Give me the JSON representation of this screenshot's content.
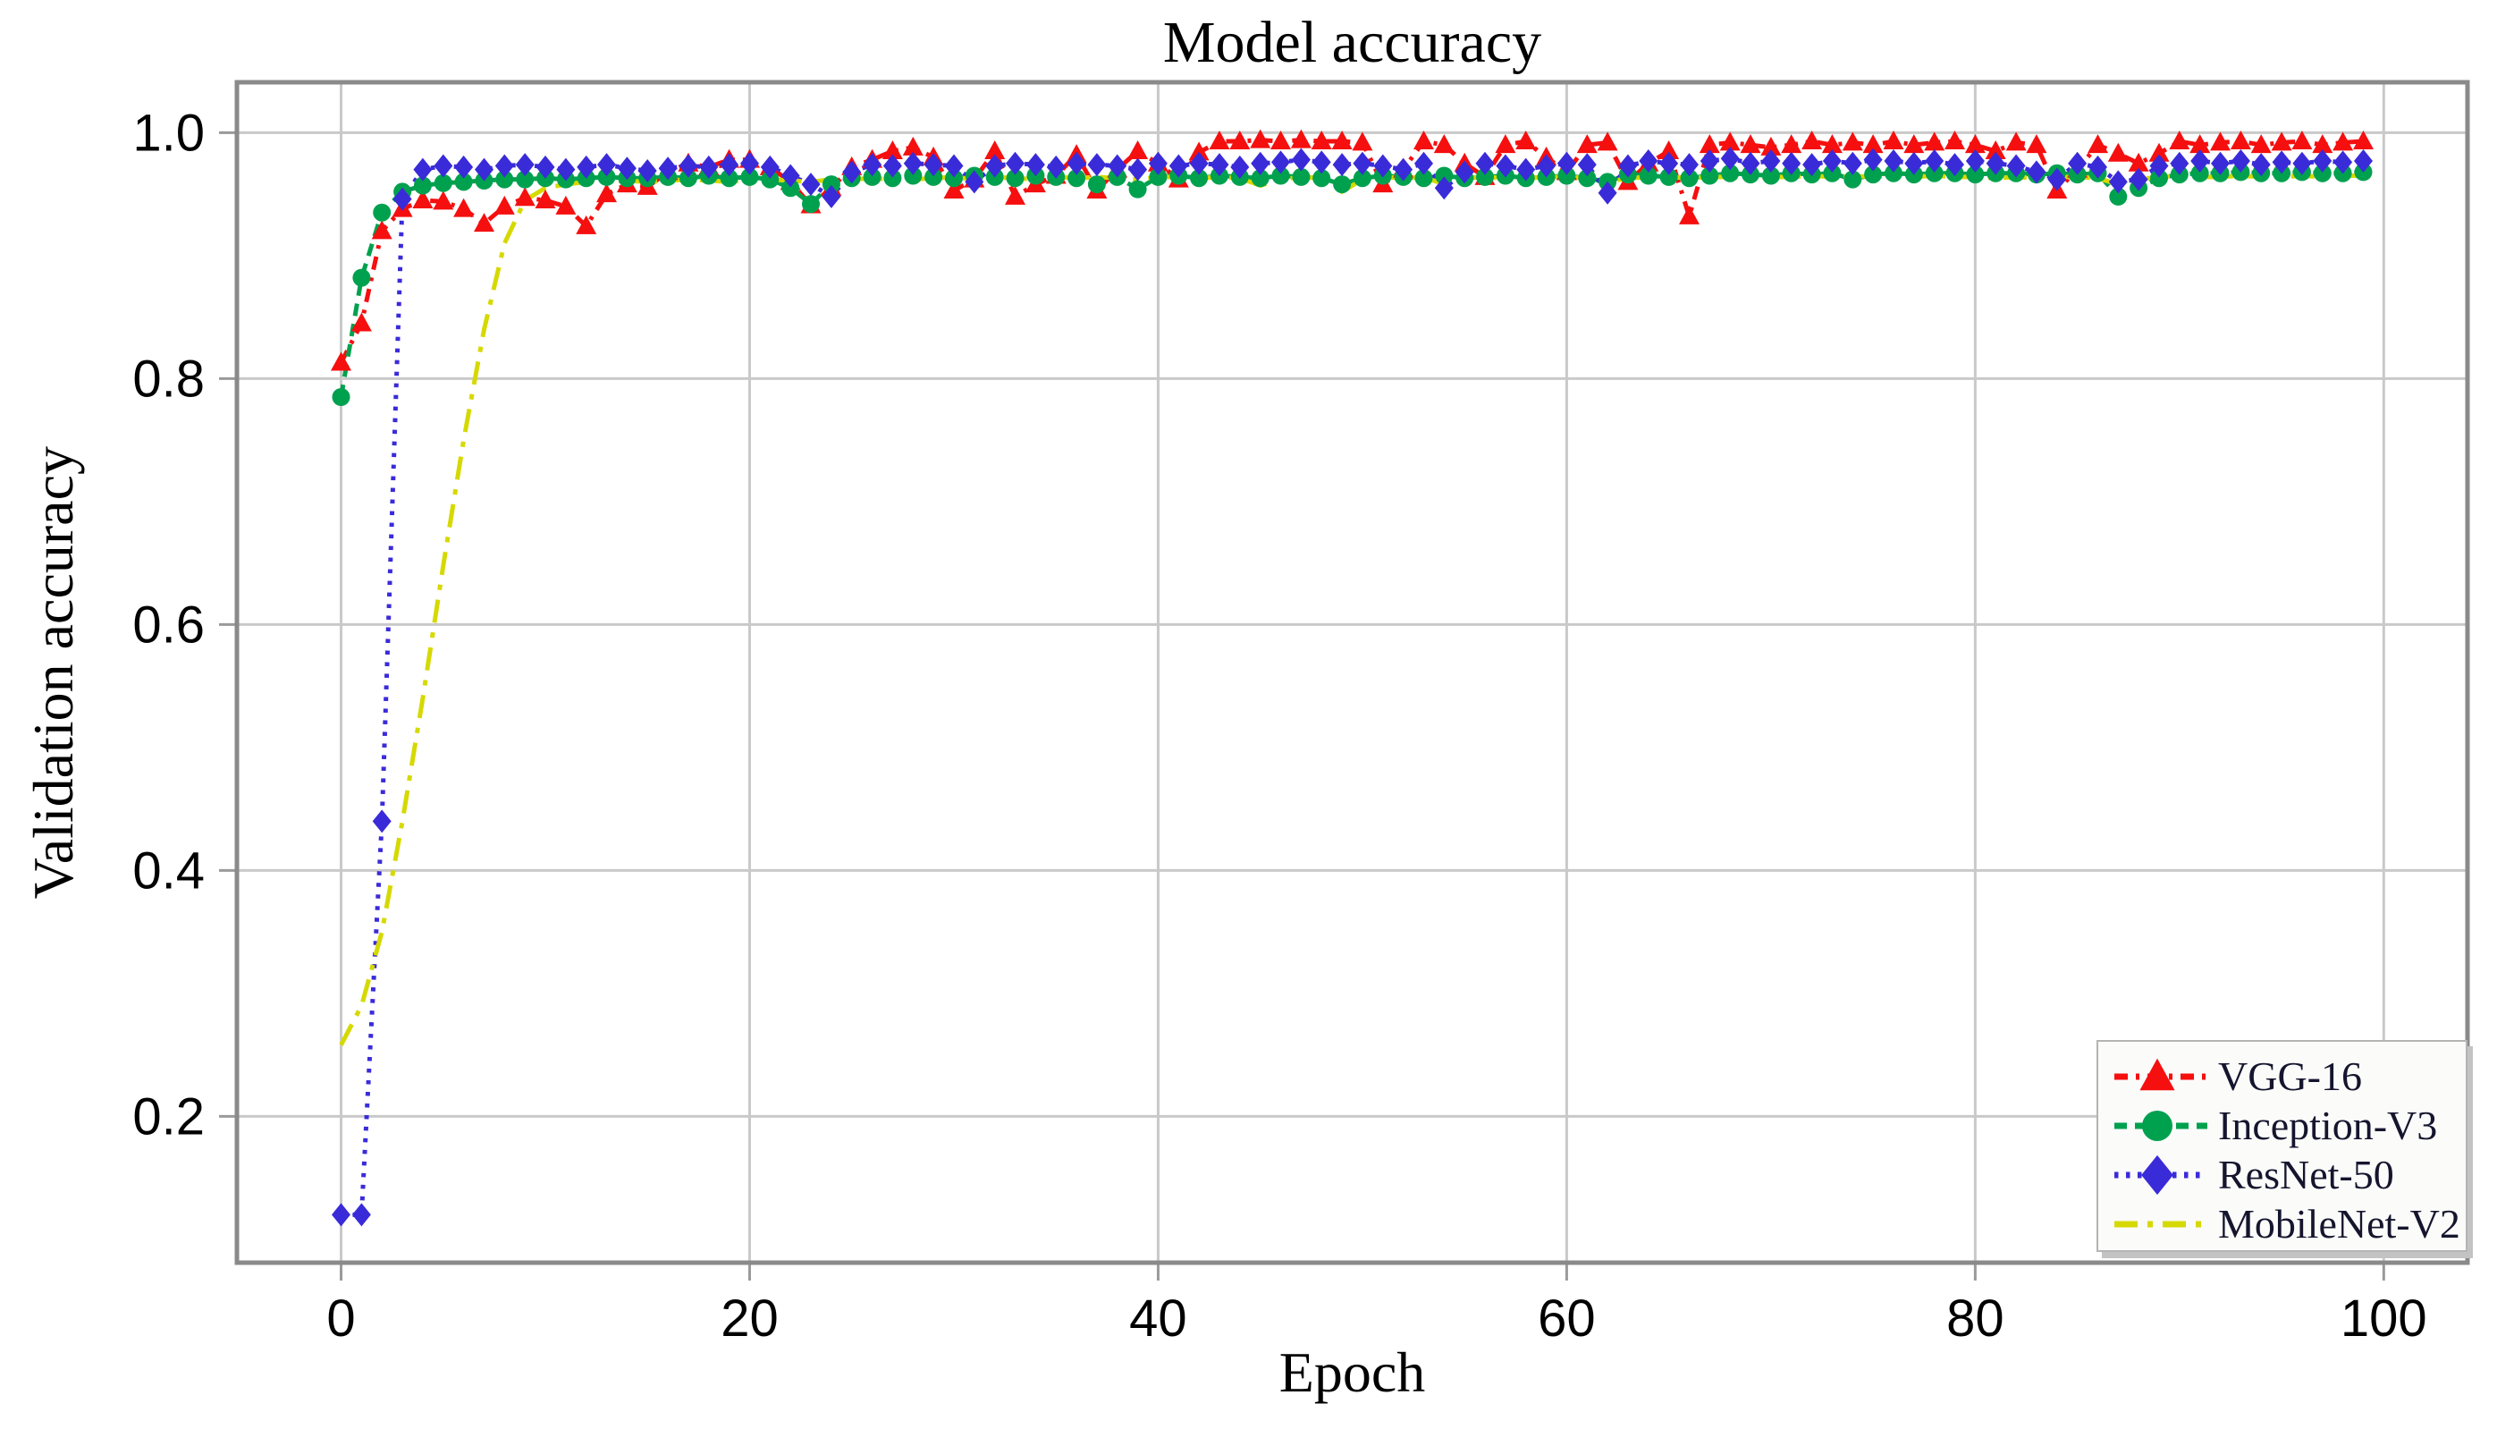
{
  "figure": {
    "title": "Model accuracy",
    "background_color": "#ffffff",
    "grid_color": "#c9c9c9",
    "spine_color": "#8a8a8a",
    "tick_color": "#9a9a9a",
    "legend_text_color": "#15152e"
  },
  "chart_data": {
    "type": "line",
    "title": "Model accuracy",
    "xlabel": "Epoch",
    "ylabel": "Validation accuracy",
    "grid": true,
    "legend_position": "lower right",
    "xlim": [
      -5.1,
      104.1
    ],
    "ylim": [
      0.081,
      1.041
    ],
    "x_tick_values": [
      0,
      20,
      40,
      60,
      80,
      100
    ],
    "x_tick_labels": [
      "0",
      "20",
      "40",
      "60",
      "80",
      "100"
    ],
    "y_tick_values": [
      0.2,
      0.4,
      0.6,
      0.8,
      1.0
    ],
    "y_tick_labels": [
      "0.2",
      "0.4",
      "0.6",
      "0.8",
      "1.0"
    ],
    "x": [
      0,
      1,
      2,
      3,
      4,
      5,
      6,
      7,
      8,
      9,
      10,
      11,
      12,
      13,
      14,
      15,
      16,
      17,
      18,
      19,
      20,
      21,
      22,
      23,
      24,
      25,
      26,
      27,
      28,
      29,
      30,
      31,
      32,
      33,
      34,
      35,
      36,
      37,
      38,
      39,
      40,
      41,
      42,
      43,
      44,
      45,
      46,
      47,
      48,
      49,
      50,
      51,
      52,
      53,
      54,
      55,
      56,
      57,
      58,
      59,
      60,
      61,
      62,
      63,
      64,
      65,
      66,
      67,
      68,
      69,
      70,
      71,
      72,
      73,
      74,
      75,
      76,
      77,
      78,
      79,
      80,
      81,
      82,
      83,
      84,
      85,
      86,
      87,
      88,
      89,
      90,
      91,
      92,
      93,
      94,
      95,
      96,
      97,
      98,
      99
    ],
    "series": [
      {
        "name": "VGG-16",
        "color": "#f50f0f",
        "marker": "triangle-up",
        "linestyle": "dashdot",
        "values": [
          0.813,
          0.845,
          0.92,
          0.938,
          0.945,
          0.944,
          0.938,
          0.926,
          0.94,
          0.947,
          0.945,
          0.94,
          0.924,
          0.95,
          0.958,
          0.956,
          0.968,
          0.975,
          0.972,
          0.978,
          0.978,
          0.972,
          0.96,
          0.941,
          0.955,
          0.972,
          0.978,
          0.985,
          0.988,
          0.98,
          0.953,
          0.962,
          0.985,
          0.948,
          0.958,
          0.965,
          0.982,
          0.953,
          0.97,
          0.985,
          0.975,
          0.962,
          0.984,
          0.993,
          0.993,
          0.994,
          0.993,
          0.994,
          0.993,
          0.993,
          0.992,
          0.958,
          0.97,
          0.993,
          0.99,
          0.975,
          0.964,
          0.99,
          0.993,
          0.98,
          0.968,
          0.99,
          0.992,
          0.96,
          0.975,
          0.985,
          0.932,
          0.99,
          0.992,
          0.99,
          0.988,
          0.99,
          0.993,
          0.99,
          0.992,
          0.99,
          0.993,
          0.99,
          0.992,
          0.993,
          0.99,
          0.985,
          0.992,
          0.99,
          0.953,
          0.97,
          0.99,
          0.983,
          0.975,
          0.983,
          0.993,
          0.99,
          0.992,
          0.993,
          0.99,
          0.992,
          0.993,
          0.99,
          0.992,
          0.993
        ]
      },
      {
        "name": "Inception-V3",
        "color": "#00a14e",
        "marker": "circle",
        "linestyle": "dashed",
        "values": [
          0.785,
          0.882,
          0.935,
          0.952,
          0.957,
          0.959,
          0.96,
          0.961,
          0.962,
          0.962,
          0.963,
          0.962,
          0.963,
          0.964,
          0.963,
          0.963,
          0.964,
          0.963,
          0.965,
          0.963,
          0.964,
          0.962,
          0.955,
          0.942,
          0.958,
          0.963,
          0.964,
          0.963,
          0.965,
          0.964,
          0.963,
          0.965,
          0.964,
          0.963,
          0.965,
          0.964,
          0.963,
          0.958,
          0.964,
          0.954,
          0.964,
          0.965,
          0.963,
          0.965,
          0.964,
          0.963,
          0.965,
          0.964,
          0.963,
          0.958,
          0.963,
          0.965,
          0.964,
          0.963,
          0.965,
          0.963,
          0.964,
          0.965,
          0.963,
          0.964,
          0.965,
          0.963,
          0.96,
          0.966,
          0.965,
          0.964,
          0.963,
          0.965,
          0.967,
          0.966,
          0.965,
          0.967,
          0.966,
          0.967,
          0.962,
          0.966,
          0.967,
          0.966,
          0.967,
          0.967,
          0.966,
          0.967,
          0.967,
          0.966,
          0.967,
          0.966,
          0.967,
          0.948,
          0.955,
          0.963,
          0.966,
          0.967,
          0.967,
          0.968,
          0.967,
          0.967,
          0.968,
          0.967,
          0.967,
          0.968
        ]
      },
      {
        "name": "ResNet-50",
        "color": "#3a2bd9",
        "marker": "diamond",
        "linestyle": "dotted",
        "values": [
          0.12,
          0.12,
          0.44,
          0.946,
          0.97,
          0.973,
          0.972,
          0.97,
          0.973,
          0.974,
          0.972,
          0.97,
          0.972,
          0.974,
          0.971,
          0.969,
          0.971,
          0.973,
          0.972,
          0.974,
          0.975,
          0.972,
          0.965,
          0.958,
          0.948,
          0.968,
          0.974,
          0.973,
          0.975,
          0.974,
          0.973,
          0.96,
          0.973,
          0.975,
          0.974,
          0.972,
          0.975,
          0.974,
          0.973,
          0.97,
          0.975,
          0.973,
          0.975,
          0.974,
          0.972,
          0.975,
          0.976,
          0.978,
          0.976,
          0.974,
          0.975,
          0.973,
          0.97,
          0.975,
          0.955,
          0.968,
          0.975,
          0.973,
          0.97,
          0.973,
          0.975,
          0.974,
          0.951,
          0.973,
          0.977,
          0.975,
          0.974,
          0.977,
          0.979,
          0.975,
          0.977,
          0.975,
          0.974,
          0.977,
          0.975,
          0.978,
          0.977,
          0.975,
          0.977,
          0.974,
          0.977,
          0.975,
          0.973,
          0.968,
          0.962,
          0.975,
          0.972,
          0.96,
          0.962,
          0.973,
          0.975,
          0.977,
          0.975,
          0.977,
          0.974,
          0.976,
          0.975,
          0.977,
          0.976,
          0.977
        ]
      },
      {
        "name": "MobileNet-V2",
        "color": "#d6d900",
        "marker": "none",
        "linestyle": "longdashdot",
        "values": [
          0.258,
          0.29,
          0.35,
          0.44,
          0.54,
          0.648,
          0.75,
          0.84,
          0.91,
          0.945,
          0.955,
          0.958,
          0.96,
          0.96,
          0.961,
          0.96,
          0.961,
          0.962,
          0.961,
          0.96,
          0.962,
          0.962,
          0.961,
          0.96,
          0.962,
          0.963,
          0.962,
          0.963,
          0.962,
          0.963,
          0.964,
          0.962,
          0.964,
          0.963,
          0.962,
          0.964,
          0.963,
          0.964,
          0.963,
          0.962,
          0.964,
          0.964,
          0.963,
          0.964,
          0.963,
          0.957,
          0.962,
          0.964,
          0.963,
          0.952,
          0.962,
          0.964,
          0.963,
          0.964,
          0.958,
          0.963,
          0.964,
          0.963,
          0.963,
          0.964,
          0.964,
          0.963,
          0.96,
          0.963,
          0.964,
          0.964,
          0.963,
          0.964,
          0.964,
          0.963,
          0.964,
          0.964,
          0.965,
          0.964,
          0.964,
          0.965,
          0.964,
          0.964,
          0.965,
          0.964,
          0.964,
          0.963,
          0.964,
          0.963,
          0.964,
          0.964,
          0.963,
          0.958,
          0.962,
          0.964,
          0.965,
          0.964,
          0.964,
          0.965,
          0.964,
          0.964,
          0.965,
          0.964,
          0.965,
          0.965
        ]
      }
    ]
  }
}
